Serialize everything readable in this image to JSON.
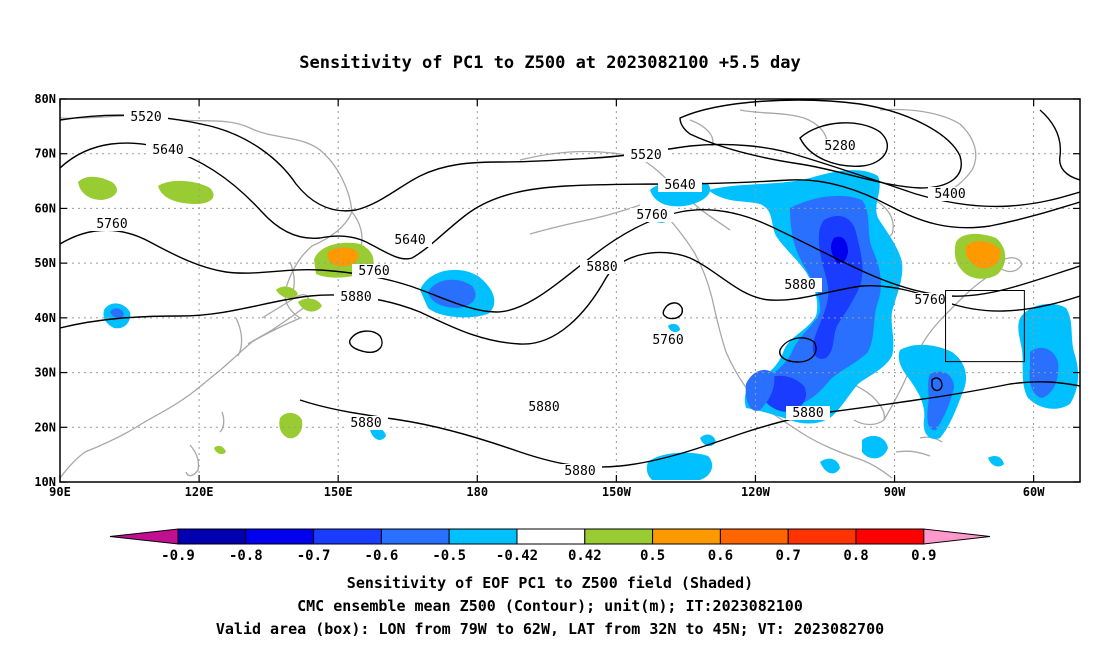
{
  "title": "Sensitivity of PC1 to Z500 at 2023082100 +5.5 day",
  "map": {
    "lon_range": [
      90,
      310
    ],
    "lat_range": [
      10,
      80
    ],
    "x_ticks": [
      {
        "lon": 90,
        "label": "90E"
      },
      {
        "lon": 120,
        "label": "120E"
      },
      {
        "lon": 150,
        "label": "150E"
      },
      {
        "lon": 180,
        "label": "180"
      },
      {
        "lon": 210,
        "label": "150W"
      },
      {
        "lon": 240,
        "label": "120W"
      },
      {
        "lon": 270,
        "label": "90W"
      },
      {
        "lon": 300,
        "label": "60W"
      }
    ],
    "y_ticks": [
      {
        "lat": 80,
        "label": "80N"
      },
      {
        "lat": 70,
        "label": "70N"
      },
      {
        "lat": 60,
        "label": "60N"
      },
      {
        "lat": 50,
        "label": "50N"
      },
      {
        "lat": 40,
        "label": "40N"
      },
      {
        "lat": 30,
        "label": "30N"
      },
      {
        "lat": 20,
        "label": "20N"
      },
      {
        "lat": 10,
        "label": "10N"
      }
    ],
    "grid": true,
    "valid_box": {
      "lon": [
        281,
        298
      ],
      "lat": [
        32,
        45
      ]
    },
    "contour_labels": [
      "5520",
      "5640",
      "5760",
      "5880",
      "5280",
      "5400"
    ]
  },
  "colorbar": {
    "labels": [
      "-0.9",
      "-0.8",
      "-0.7",
      "-0.6",
      "-0.5",
      "-0.42",
      "0.42",
      "0.5",
      "0.6",
      "0.7",
      "0.8",
      "0.9"
    ],
    "colors": {
      "lt_-0.9": "#c01090",
      "-0.9": "#0000b0",
      "-0.8": "#0000ee",
      "-0.7": "#1a3cff",
      "-0.6": "#2a70ff",
      "-0.5": "#00c0ff",
      "neutral": "#ffffff",
      "0.42": "#99cc33",
      "0.5": "#ff9900",
      "0.6": "#ff6600",
      "0.7": "#ff3300",
      "0.8": "#ff0000",
      "gt_0.9": "#ff99cc"
    }
  },
  "footer": [
    "Sensitivity of EOF PC1 to Z500 field (Shaded)",
    "CMC ensemble mean Z500 (Contour); unit(m); IT:2023082100",
    "Valid area (box): LON from 79W to 62W, LAT from 32N to 45N; VT: 2023082700"
  ]
}
